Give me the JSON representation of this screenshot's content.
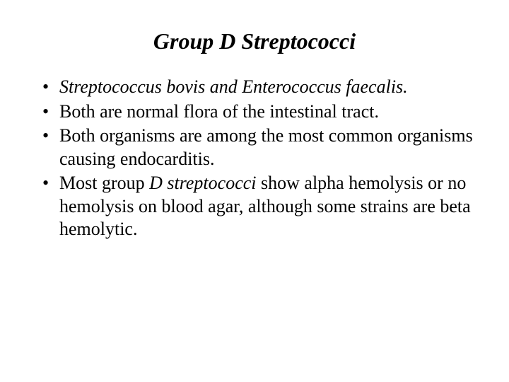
{
  "slide": {
    "title": "Group D Streptococci",
    "bullets": [
      {
        "segments": [
          {
            "text": "Streptococcus bovis and  Enterococcus faecalis.",
            "italic": true
          }
        ]
      },
      {
        "segments": [
          {
            "text": "Both are normal flora of the intestinal tract.",
            "italic": false
          }
        ]
      },
      {
        "segments": [
          {
            "text": "Both organisms are among the most common organisms causing  endocarditis.",
            "italic": false
          }
        ]
      },
      {
        "segments": [
          {
            "text": "Most group ",
            "italic": false
          },
          {
            "text": "D streptococci ",
            "italic": true
          },
          {
            "text": "show alpha hemolysis or no hemolysis on blood agar, although some strains are beta hemolytic.",
            "italic": false
          }
        ]
      }
    ],
    "colors": {
      "background": "#ffffff",
      "text": "#000000"
    },
    "typography": {
      "title_fontsize": 32,
      "title_weight": "bold",
      "title_style": "italic",
      "body_fontsize": 26,
      "font_family": "Times New Roman"
    }
  }
}
